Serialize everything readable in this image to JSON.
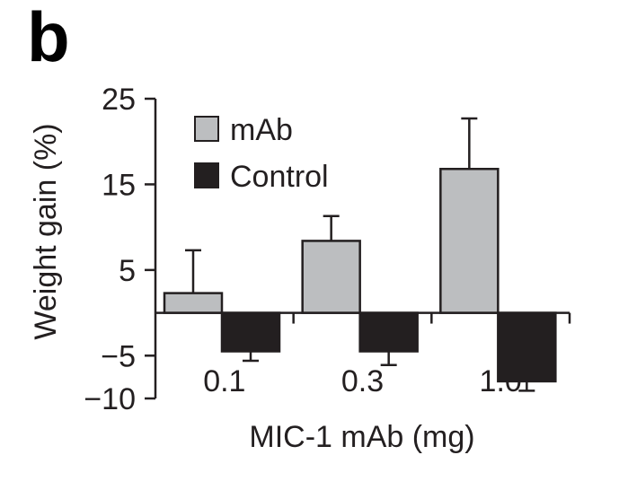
{
  "panel_label": "b",
  "chart_data": {
    "type": "bar",
    "categories": [
      "0.1",
      "0.3",
      "1.0"
    ],
    "series": [
      {
        "name": "mAb",
        "values": [
          2.3,
          8.4,
          16.8
        ],
        "errors": [
          5.0,
          2.9,
          5.9
        ],
        "color": "#bcbec0"
      },
      {
        "name": "Control",
        "values": [
          -4.5,
          -4.5,
          -8.0
        ],
        "errors": [
          1.1,
          1.6,
          1.1
        ],
        "color": "#231f20"
      }
    ],
    "xlabel": "MIC-1 mAb (mg)",
    "ylabel": "Weight gain (%)",
    "ylim": [
      -10,
      25
    ],
    "yticks": [
      25,
      15,
      5,
      -5,
      -10
    ],
    "ytick_labels": [
      "25",
      "15",
      "5",
      "−5",
      "−10"
    ],
    "legend_position": "top-left",
    "grid": false
  }
}
